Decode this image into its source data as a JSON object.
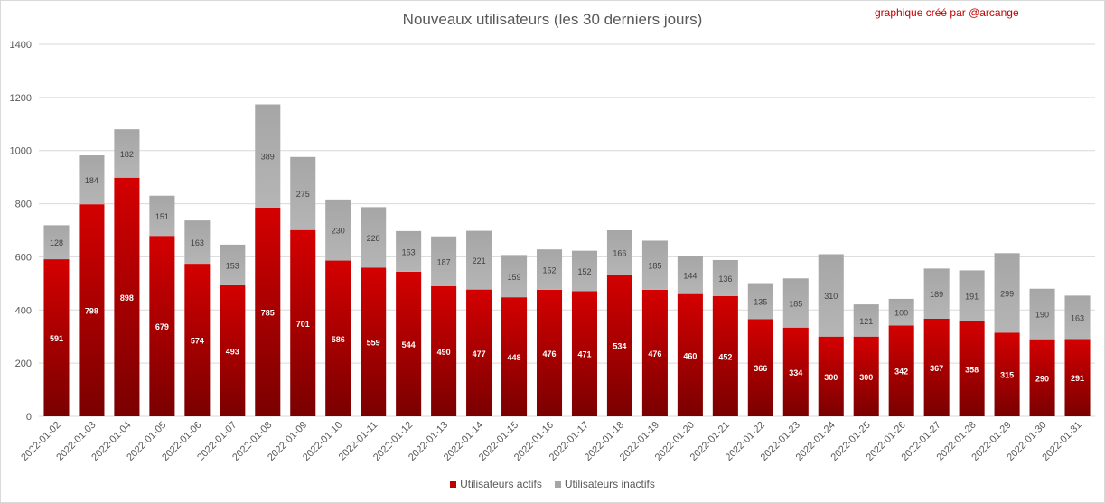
{
  "title": "Nouveaux utilisateurs  (les 30 derniers  jours)",
  "credit": "graphique créé par @arcange",
  "colors": {
    "active": "#c00000",
    "inactive": "#a6a6a6",
    "grid": "#d9d9d9",
    "text": "#595959"
  },
  "chart_data": {
    "type": "bar",
    "stacked": true,
    "title": "Nouveaux utilisateurs  (les 30 derniers  jours)",
    "xlabel": "",
    "ylabel": "",
    "ylim": [
      0,
      1400
    ],
    "yticks": [
      "0",
      "200",
      "400",
      "600",
      "800",
      "1000",
      "1200",
      "1400"
    ],
    "grid": true,
    "legend_position": "bottom",
    "categories": [
      "2022-01-02",
      "2022-01-03",
      "2022-01-04",
      "2022-01-05",
      "2022-01-06",
      "2022-01-07",
      "2022-01-08",
      "2022-01-09",
      "2022-01-10",
      "2022-01-11",
      "2022-01-12",
      "2022-01-13",
      "2022-01-14",
      "2022-01-15",
      "2022-01-16",
      "2022-01-17",
      "2022-01-18",
      "2022-01-19",
      "2022-01-20",
      "2022-01-21",
      "2022-01-22",
      "2022-01-23",
      "2022-01-24",
      "2022-01-25",
      "2022-01-26",
      "2022-01-27",
      "2022-01-28",
      "2022-01-29",
      "2022-01-30",
      "2022-01-31"
    ],
    "series": [
      {
        "name": "Utilisateurs actifs",
        "values": [
          591,
          798,
          898,
          679,
          574,
          493,
          785,
          701,
          586,
          559,
          544,
          490,
          477,
          448,
          476,
          471,
          534,
          476,
          460,
          452,
          366,
          334,
          300,
          300,
          342,
          367,
          358,
          315,
          290,
          291
        ]
      },
      {
        "name": "Utilisateurs inactifs",
        "values": [
          128,
          184,
          182,
          151,
          163,
          153,
          389,
          275,
          230,
          228,
          153,
          187,
          221,
          159,
          152,
          152,
          166,
          185,
          144,
          136,
          135,
          185,
          310,
          121,
          100,
          189,
          191,
          299,
          190,
          163
        ]
      }
    ]
  }
}
